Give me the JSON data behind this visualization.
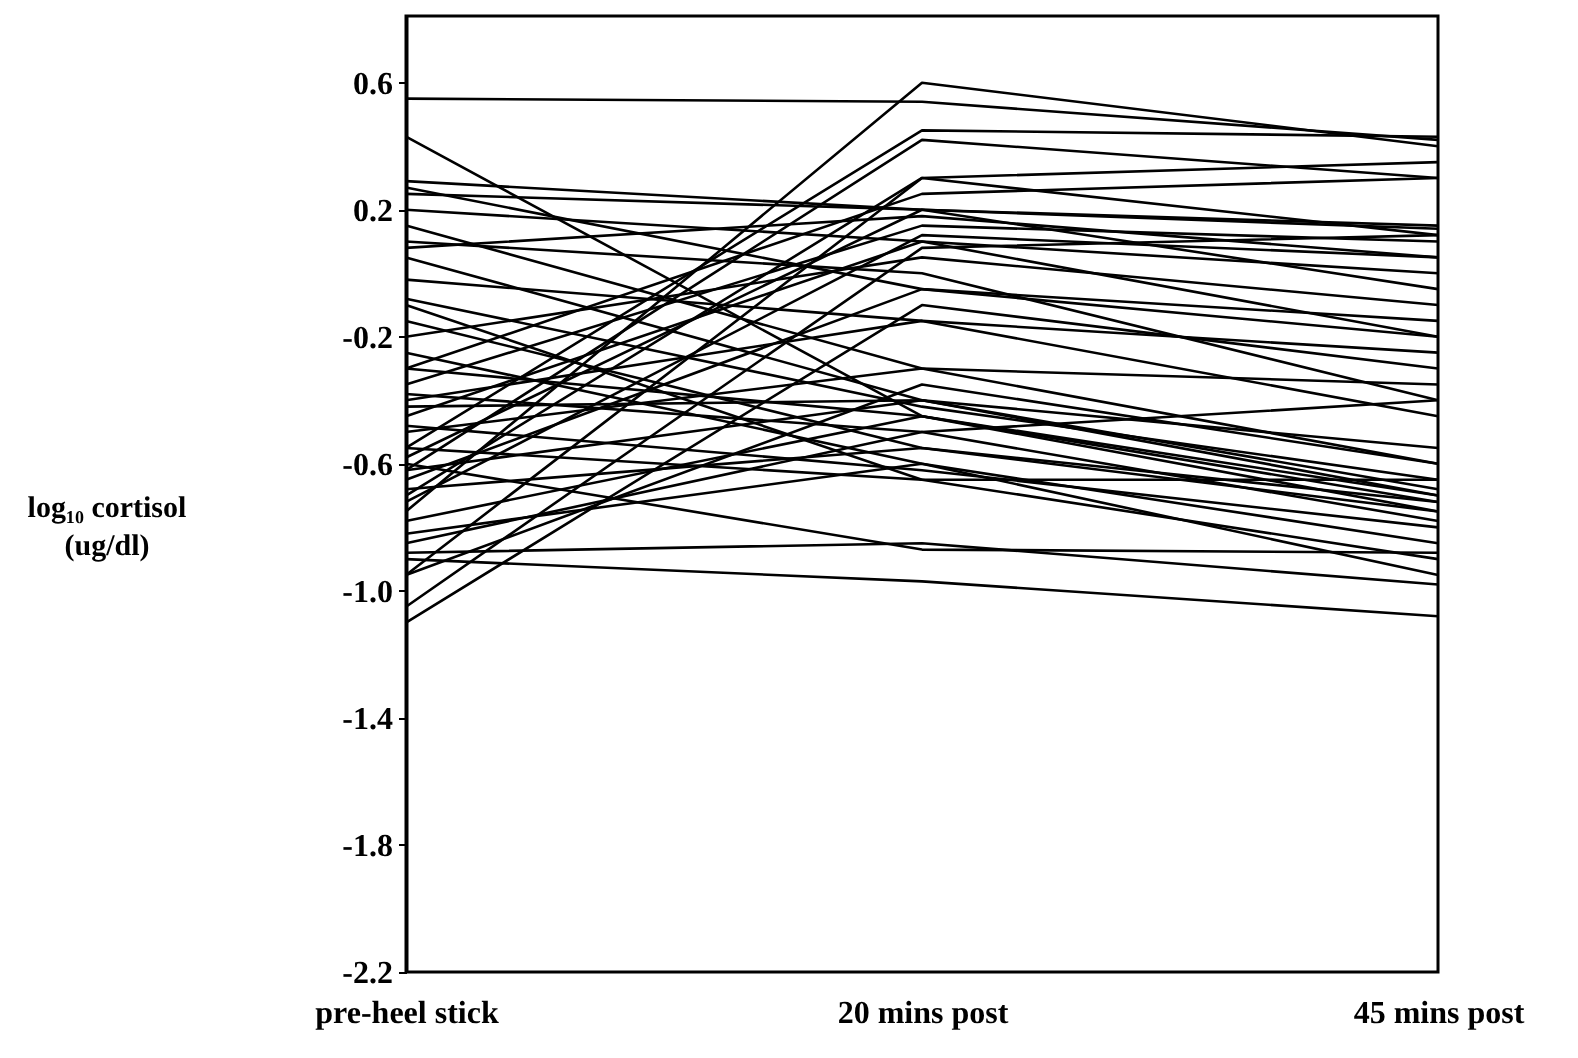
{
  "chart_data": {
    "type": "line",
    "ylabel": "log₁₀ cortisol (ug/dl)",
    "categories": [
      "pre-heel stick",
      "20 mins post",
      "45 mins post"
    ],
    "ylim": [
      -2.2,
      0.81
    ],
    "yticks": [
      0.6,
      0.2,
      -0.2,
      -0.6,
      {
        "value": -1,
        "label": "-1.0"
      },
      -1.4,
      -1.8,
      -2.2
    ],
    "grid": false,
    "marker": "none",
    "line_style": "solid",
    "series": [
      {
        "color": "#000000",
        "values": [
          0.55,
          0.54,
          0.42
        ]
      },
      {
        "color": "#000000",
        "values": [
          0.43,
          -0.45,
          -0.72
        ]
      },
      {
        "color": "#000000",
        "values": [
          -0.9,
          -0.97,
          -1.08
        ]
      },
      {
        "color": "#000000",
        "values": [
          -0.75,
          0.6,
          0.4
        ]
      },
      {
        "color": "#000000",
        "values": [
          -0.55,
          0.45,
          0.43
        ]
      },
      {
        "color": "#000000",
        "values": [
          -0.62,
          0.42,
          0.3
        ]
      },
      {
        "color": "#000000",
        "values": [
          -0.95,
          0.3,
          0.12
        ]
      },
      {
        "color": "#000000",
        "values": [
          -0.7,
          0.3,
          0.35
        ]
      },
      {
        "color": "#000000",
        "values": [
          0.29,
          0.2,
          0.14
        ]
      },
      {
        "color": "#000000",
        "values": [
          0.27,
          -0.05,
          -0.15
        ]
      },
      {
        "color": "#000000",
        "values": [
          0.25,
          0.2,
          0.15
        ]
      },
      {
        "color": "#000000",
        "values": [
          0.2,
          0.1,
          -0.2
        ]
      },
      {
        "color": "#000000",
        "values": [
          0.15,
          -0.3,
          -0.6
        ]
      },
      {
        "color": "#000000",
        "values": [
          0.08,
          0.18,
          0.05
        ]
      },
      {
        "color": "#000000",
        "values": [
          0.05,
          -0.4,
          -0.7
        ]
      },
      {
        "color": "#000000",
        "values": [
          -0.02,
          -0.15,
          -0.25
        ]
      },
      {
        "color": "#000000",
        "values": [
          -0.08,
          -0.42,
          -0.65
        ]
      },
      {
        "color": "#000000",
        "values": [
          -0.15,
          -0.55,
          -0.75
        ]
      },
      {
        "color": "#000000",
        "values": [
          -0.2,
          0.05,
          -0.1
        ]
      },
      {
        "color": "#000000",
        "values": [
          -0.25,
          -0.6,
          -0.85
        ]
      },
      {
        "color": "#000000",
        "values": [
          -0.3,
          -0.45,
          -0.7
        ]
      },
      {
        "color": "#000000",
        "values": [
          -0.35,
          0.15,
          0.1
        ]
      },
      {
        "color": "#000000",
        "values": [
          -0.38,
          -0.5,
          -0.78
        ]
      },
      {
        "color": "#000000",
        "values": [
          -0.42,
          -0.4,
          -0.55
        ]
      },
      {
        "color": "#000000",
        "values": [
          -0.45,
          0.1,
          0.0
        ]
      },
      {
        "color": "#000000",
        "values": [
          -0.48,
          -0.62,
          -0.8
        ]
      },
      {
        "color": "#000000",
        "values": [
          -0.5,
          -0.3,
          -0.35
        ]
      },
      {
        "color": "#000000",
        "values": [
          -0.55,
          -0.65,
          -0.9
        ]
      },
      {
        "color": "#000000",
        "values": [
          -0.58,
          0.2,
          -0.05
        ]
      },
      {
        "color": "#000000",
        "values": [
          -0.62,
          -0.4,
          -0.68
        ]
      },
      {
        "color": "#000000",
        "values": [
          -0.65,
          -0.05,
          -0.2
        ]
      },
      {
        "color": "#000000",
        "values": [
          -0.68,
          -0.55,
          -0.72
        ]
      },
      {
        "color": "#000000",
        "values": [
          -0.72,
          0.12,
          0.05
        ]
      },
      {
        "color": "#000000",
        "values": [
          -0.78,
          -0.45,
          -0.75
        ]
      },
      {
        "color": "#000000",
        "values": [
          -0.82,
          -0.6,
          -0.95
        ]
      },
      {
        "color": "#000000",
        "values": [
          -0.88,
          -0.85,
          -0.98
        ]
      },
      {
        "color": "#000000",
        "values": [
          -0.95,
          -0.35,
          -0.6
        ]
      },
      {
        "color": "#000000",
        "values": [
          -1.05,
          0.08,
          0.12
        ]
      },
      {
        "color": "#000000",
        "values": [
          -1.1,
          -0.1,
          -0.3
        ]
      },
      {
        "color": "#000000",
        "values": [
          -0.6,
          -0.87,
          -0.88
        ]
      },
      {
        "color": "#000000",
        "values": [
          -0.4,
          -0.15,
          -0.45
        ]
      },
      {
        "color": "#000000",
        "values": [
          -0.1,
          -0.65,
          -0.65
        ]
      },
      {
        "color": "#000000",
        "values": [
          0.1,
          0.0,
          -0.4
        ]
      },
      {
        "color": "#000000",
        "values": [
          -0.85,
          -0.5,
          -0.4
        ]
      },
      {
        "color": "#000000",
        "values": [
          -0.3,
          0.25,
          0.3
        ]
      }
    ]
  }
}
